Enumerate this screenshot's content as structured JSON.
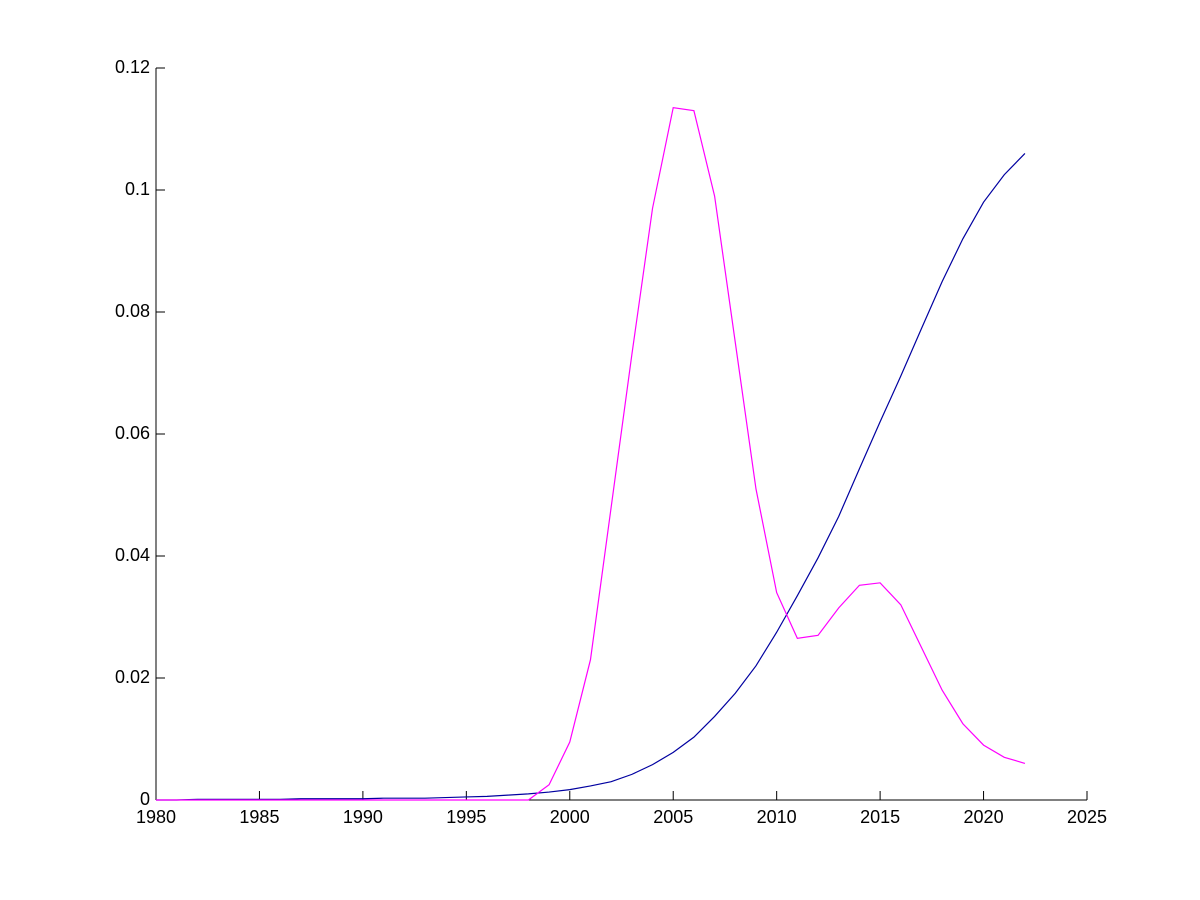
{
  "chart_data": {
    "type": "line",
    "x": [
      1980,
      1981,
      1982,
      1983,
      1984,
      1985,
      1986,
      1987,
      1988,
      1989,
      1990,
      1991,
      1992,
      1993,
      1994,
      1995,
      1996,
      1997,
      1998,
      1999,
      2000,
      2001,
      2002,
      2003,
      2004,
      2005,
      2006,
      2007,
      2008,
      2009,
      2010,
      2011,
      2012,
      2013,
      2014,
      2015,
      2016,
      2017,
      2018,
      2019,
      2020,
      2021,
      2022
    ],
    "series": [
      {
        "color": "#0000a0",
        "values": [
          0,
          0,
          0.0001,
          0.0001,
          0.0001,
          0.0001,
          0.0001,
          0.0002,
          0.0002,
          0.0002,
          0.0002,
          0.0003,
          0.0003,
          0.0003,
          0.0004,
          0.0005,
          0.0006,
          0.0008,
          0.001,
          0.0013,
          0.0017,
          0.0023,
          0.003,
          0.0042,
          0.0058,
          0.0078,
          0.0103,
          0.0137,
          0.0175,
          0.022,
          0.0275,
          0.0335,
          0.0397,
          0.0465,
          0.0543,
          0.062,
          0.0695,
          0.0773,
          0.085,
          0.092,
          0.098,
          0.1025,
          0.106
        ]
      },
      {
        "color": "#ff00ff",
        "values": [
          0,
          0,
          0,
          0,
          0,
          0,
          0,
          0,
          0,
          0,
          0,
          0,
          0,
          0,
          0,
          0,
          0,
          0,
          0,
          0.0025,
          0.0095,
          0.023,
          0.048,
          0.073,
          0.097,
          0.1135,
          0.113,
          0.099,
          0.075,
          0.051,
          0.034,
          0.0265,
          0.027,
          0.0315,
          0.0352,
          0.0356,
          0.032,
          0.025,
          0.018,
          0.0125,
          0.009,
          0.007,
          0.006
        ]
      }
    ],
    "xlim": [
      1980,
      2025
    ],
    "xticks": [
      1980,
      1985,
      1990,
      1995,
      2000,
      2005,
      2010,
      2015,
      2020,
      2025
    ],
    "ylim": [
      0,
      0.12
    ],
    "yticks": [
      0,
      0.02,
      0.04,
      0.06,
      0.08,
      0.1,
      0.12
    ]
  }
}
